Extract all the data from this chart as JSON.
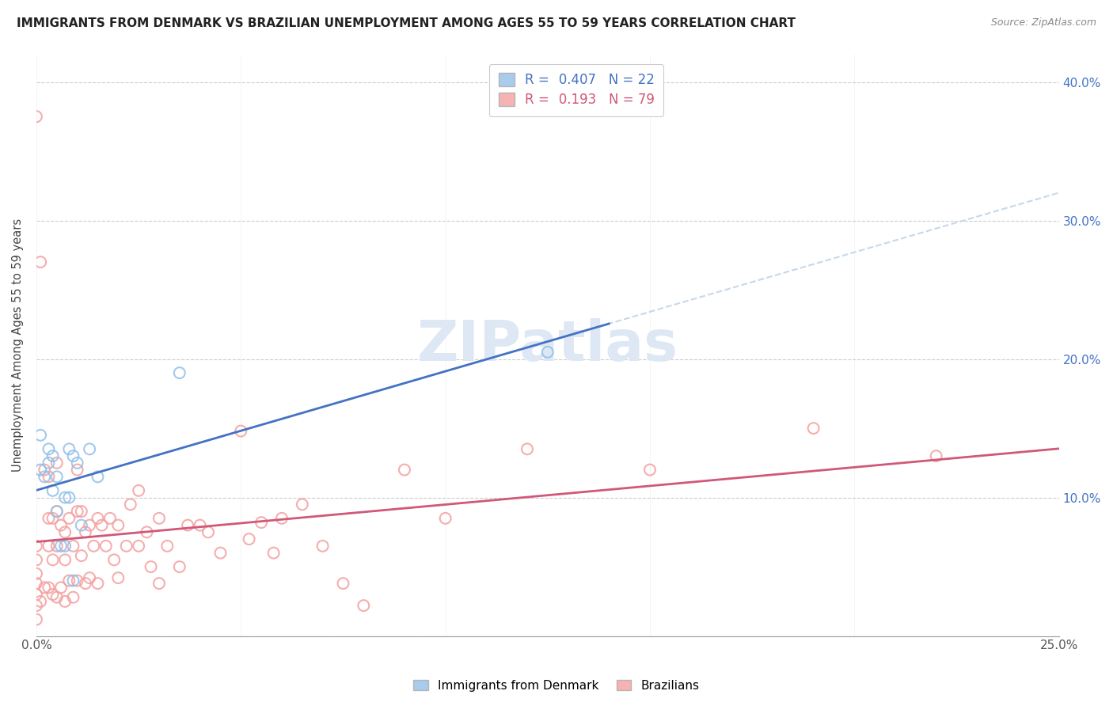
{
  "title": "IMMIGRANTS FROM DENMARK VS BRAZILIAN UNEMPLOYMENT AMONG AGES 55 TO 59 YEARS CORRELATION CHART",
  "source": "Source: ZipAtlas.com",
  "ylabel": "Unemployment Among Ages 55 to 59 years",
  "xlim": [
    0.0,
    0.25
  ],
  "ylim": [
    0.0,
    0.42
  ],
  "background_color": "#ffffff",
  "grid_color": "#cccccc",
  "watermark": "ZIPatlas",
  "denmark_R": 0.407,
  "denmark_N": 22,
  "brazil_R": 0.193,
  "brazil_N": 79,
  "denmark_color": "#92c0e8",
  "denmark_edge_color": "#92c0e8",
  "brazil_color": "#f4a0a0",
  "brazil_edge_color": "#f4a0a0",
  "denmark_line_color": "#4472c4",
  "brazil_line_color": "#d05878",
  "dashed_line_color": "#c0d4e8",
  "denmark_x": [
    0.001,
    0.001,
    0.002,
    0.003,
    0.003,
    0.004,
    0.004,
    0.005,
    0.005,
    0.006,
    0.007,
    0.007,
    0.008,
    0.008,
    0.009,
    0.009,
    0.01,
    0.011,
    0.013,
    0.015,
    0.035,
    0.125
  ],
  "denmark_y": [
    0.145,
    0.12,
    0.115,
    0.135,
    0.125,
    0.105,
    0.13,
    0.115,
    0.09,
    0.065,
    0.1,
    0.065,
    0.135,
    0.1,
    0.13,
    0.04,
    0.125,
    0.08,
    0.135,
    0.115,
    0.19,
    0.205
  ],
  "brazil_x": [
    0.0,
    0.0,
    0.0,
    0.0,
    0.0,
    0.0,
    0.0,
    0.0,
    0.001,
    0.001,
    0.002,
    0.002,
    0.003,
    0.003,
    0.003,
    0.003,
    0.004,
    0.004,
    0.004,
    0.005,
    0.005,
    0.005,
    0.005,
    0.006,
    0.006,
    0.007,
    0.007,
    0.007,
    0.008,
    0.008,
    0.009,
    0.009,
    0.01,
    0.01,
    0.01,
    0.011,
    0.011,
    0.012,
    0.012,
    0.013,
    0.013,
    0.014,
    0.015,
    0.015,
    0.016,
    0.017,
    0.018,
    0.019,
    0.02,
    0.02,
    0.022,
    0.023,
    0.025,
    0.025,
    0.027,
    0.028,
    0.03,
    0.03,
    0.032,
    0.035,
    0.037,
    0.04,
    0.042,
    0.045,
    0.05,
    0.052,
    0.055,
    0.058,
    0.06,
    0.065,
    0.07,
    0.075,
    0.08,
    0.09,
    0.1,
    0.12,
    0.15,
    0.19,
    0.22
  ],
  "brazil_y": [
    0.375,
    0.065,
    0.055,
    0.045,
    0.038,
    0.03,
    0.022,
    0.012,
    0.27,
    0.025,
    0.12,
    0.035,
    0.115,
    0.085,
    0.065,
    0.035,
    0.085,
    0.055,
    0.03,
    0.125,
    0.09,
    0.065,
    0.028,
    0.08,
    0.035,
    0.075,
    0.055,
    0.025,
    0.085,
    0.04,
    0.065,
    0.028,
    0.12,
    0.09,
    0.04,
    0.09,
    0.058,
    0.075,
    0.038,
    0.08,
    0.042,
    0.065,
    0.085,
    0.038,
    0.08,
    0.065,
    0.085,
    0.055,
    0.08,
    0.042,
    0.065,
    0.095,
    0.105,
    0.065,
    0.075,
    0.05,
    0.085,
    0.038,
    0.065,
    0.05,
    0.08,
    0.08,
    0.075,
    0.06,
    0.148,
    0.07,
    0.082,
    0.06,
    0.085,
    0.095,
    0.065,
    0.038,
    0.022,
    0.12,
    0.085,
    0.135,
    0.12,
    0.15,
    0.13
  ]
}
